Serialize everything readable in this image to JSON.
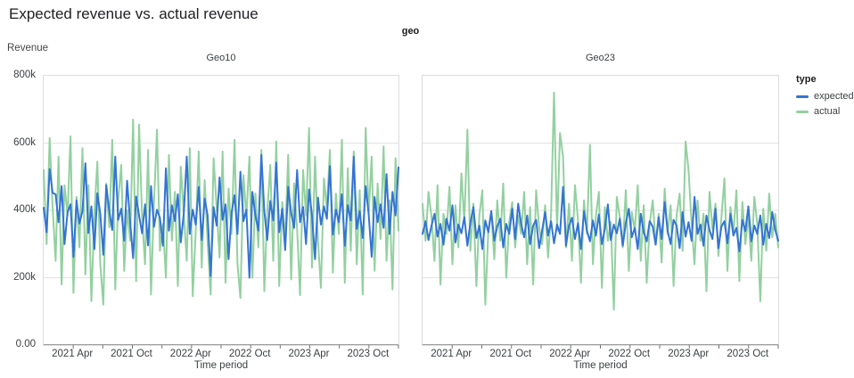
{
  "page": {
    "title": "Expected revenue vs. actual revenue"
  },
  "chart": {
    "facet_field_label": "geo",
    "y_axis_title": "Revenue",
    "x_axis_title": "Time period",
    "legend": {
      "title": "type",
      "position": "right",
      "items": [
        {
          "label": "expected",
          "color": "#3474d4"
        },
        {
          "label": "actual",
          "color": "#93d0a0"
        }
      ]
    },
    "colors": {
      "expected_line": "#3474d4",
      "actual_line": "#93d0a0",
      "gridline": "#e2e2e2",
      "axis_line": "#9e9e9e",
      "tick": "#757575",
      "plot_border": "#dadce0",
      "label_text": "#3c4043",
      "title_text": "#202124"
    }
  },
  "chart_data": [
    {
      "type": "line",
      "facet": "Geo10",
      "title": "Geo10",
      "chart_title": "Expected revenue vs. actual revenue",
      "xlabel": "Time period",
      "ylabel": "Revenue",
      "unit": "revenue in thousands (k)",
      "x_start": "2021 Jan",
      "x_end": "2024 Jan",
      "cadence": "~weekly noisy samples, 120 points per series",
      "x_domain_months": 36,
      "x_ticks_months": {
        "major": [
          3,
          9,
          15,
          21,
          27,
          33
        ],
        "minor": [
          6,
          12,
          18,
          24,
          30,
          36
        ]
      },
      "x_tick_labels": [
        "2021 Apr",
        "2021 Oct",
        "2022 Apr",
        "2022 Oct",
        "2023 Apr",
        "2023 Oct"
      ],
      "ylim_k": [
        0,
        800
      ],
      "y_ticks_k": [
        0,
        200,
        400,
        600,
        800
      ],
      "y_tick_labels": [
        "0.00",
        "200k",
        "400k",
        "600k",
        "800k"
      ],
      "gridlines_k": [
        200,
        400,
        600
      ],
      "grid": "horizontal only",
      "series": [
        {
          "name": "expected",
          "color": "#3474d4",
          "values_k": [
            408,
            335,
            523,
            452,
            448,
            365,
            472,
            300,
            395,
            418,
            262,
            430,
            361,
            398,
            540,
            333,
            412,
            285,
            451,
            390,
            268,
            475,
            398,
            342,
            560,
            372,
            405,
            310,
            488,
            365,
            258,
            441,
            385,
            332,
            418,
            296,
            472,
            351,
            402,
            378,
            295,
            525,
            340,
            415,
            368,
            448,
            305,
            392,
            560,
            330,
            402,
            358,
            470,
            312,
            435,
            385,
            205,
            410,
            355,
            498,
            372,
            418,
            255,
            392,
            445,
            330,
            515,
            368,
            402,
            200,
            455,
            385,
            340,
            565,
            398,
            312,
            428,
            370,
            542,
            335,
            405,
            282,
            470,
            392,
            348,
            520,
            365,
            410,
            300,
            462,
            385,
            255,
            438,
            358,
            412,
            375,
            532,
            328,
            402,
            365,
            448,
            295,
            415,
            370,
            560,
            345,
            398,
            318,
            472,
            388,
            262,
            440,
            365,
            418,
            348,
            508,
            330,
            455,
            385,
            528
          ]
        },
        {
          "name": "actual",
          "color": "#93d0a0",
          "values_k": [
            520,
            300,
            615,
            410,
            250,
            560,
            180,
            475,
            385,
            620,
            155,
            440,
            290,
            585,
            210,
            475,
            130,
            390,
            545,
            240,
            120,
            480,
            350,
            610,
            165,
            430,
            535,
            220,
            400,
            310,
            670,
            190,
            655,
            380,
            240,
            580,
            150,
            420,
            640,
            280,
            360,
            200,
            565,
            310,
            455,
            175,
            530,
            390,
            250,
            585,
            145,
            340,
            575,
            230,
            490,
            305,
            150,
            555,
            410,
            260,
            575,
            185,
            465,
            330,
            610,
            240,
            140,
            505,
            380,
            560,
            200,
            450,
            290,
            580,
            160,
            395,
            535,
            250,
            605,
            175,
            425,
            310,
            565,
            195,
            480,
            345,
            148,
            520,
            385,
            645,
            230,
            560,
            310,
            170,
            495,
            405,
            580,
            215,
            450,
            330,
            610,
            185,
            525,
            280,
            575,
            240,
            460,
            150,
            645,
            390,
            560,
            220,
            480,
            315,
            590,
            250,
            430,
            165,
            555,
            340
          ]
        }
      ]
    },
    {
      "type": "line",
      "facet": "Geo23",
      "title": "Geo23",
      "chart_title": "Expected revenue vs. actual revenue",
      "xlabel": "Time period",
      "ylabel": "Revenue",
      "unit": "revenue in thousands (k)",
      "x_start": "2021 Jan",
      "x_end": "2024 Jan",
      "cadence": "~weekly noisy samples, 120 points per series",
      "x_domain_months": 36,
      "x_ticks_months": {
        "major": [
          3,
          9,
          15,
          21,
          27,
          33
        ],
        "minor": [
          6,
          12,
          18,
          24,
          30,
          36
        ]
      },
      "x_tick_labels": [
        "2021 Apr",
        "2021 Oct",
        "2022 Apr",
        "2022 Oct",
        "2023 Apr",
        "2023 Oct"
      ],
      "ylim_k": [
        0,
        800
      ],
      "y_ticks_k": [
        0,
        200,
        400,
        600,
        800
      ],
      "y_tick_labels": [
        "0.00",
        "200k",
        "400k",
        "600k",
        "800k"
      ],
      "gridlines_k": [
        200,
        400,
        600
      ],
      "grid": "horizontal only",
      "series": [
        {
          "name": "expected",
          "color": "#3474d4",
          "values_k": [
            330,
            368,
            312,
            355,
            390,
            322,
            360,
            298,
            375,
            340,
            415,
            305,
            358,
            332,
            380,
            295,
            362,
            410,
            318,
            355,
            285,
            370,
            335,
            398,
            310,
            352,
            375,
            290,
            360,
            330,
            405,
            315,
            420,
            360,
            320,
            385,
            300,
            355,
            372,
            288,
            340,
            395,
            325,
            368,
            302,
            358,
            330,
            470,
            295,
            355,
            378,
            315,
            362,
            285,
            398,
            340,
            308,
            370,
            325,
            388,
            300,
            345,
            418,
            312,
            358,
            332,
            375,
            295,
            362,
            405,
            320,
            348,
            285,
            390,
            335,
            308,
            368,
            352,
            298,
            380,
            315,
            425,
            340,
            300,
            372,
            355,
            288,
            395,
            322,
            365,
            310,
            440,
            330,
            358,
            295,
            385,
            342,
            315,
            405,
            288,
            352,
            368,
            302,
            390,
            325,
            348,
            278,
            372,
            338,
            412,
            308,
            355,
            330,
            385,
            298,
            360,
            318,
            395,
            342,
            310
          ]
        },
        {
          "name": "actual",
          "color": "#93d0a0",
          "values_k": [
            420,
            310,
            455,
            380,
            250,
            475,
            180,
            390,
            330,
            470,
            240,
            415,
            290,
            510,
            365,
            640,
            280,
            420,
            175,
            385,
            460,
            120,
            340,
            395,
            255,
            430,
            310,
            480,
            200,
            365,
            425,
            290,
            385,
            330,
            455,
            240,
            410,
            180,
            460,
            350,
            300,
            415,
            260,
            390,
            750,
            340,
            630,
            560,
            290,
            420,
            250,
            475,
            370,
            185,
            430,
            330,
            595,
            240,
            385,
            455,
            170,
            410,
            310,
            365,
            105,
            440,
            380,
            290,
            460,
            220,
            395,
            340,
            475,
            250,
            415,
            185,
            360,
            430,
            300,
            390,
            245,
            465,
            330,
            415,
            175,
            385,
            450,
            280,
            605,
            520,
            360,
            240,
            430,
            310,
            390,
            160,
            455,
            345,
            420,
            265,
            380,
            495,
            220,
            410,
            330,
            460,
            190,
            425,
            300,
            385,
            250,
            440,
            360,
            130,
            405,
            280,
            450,
            320,
            390,
            290
          ]
        }
      ]
    }
  ]
}
